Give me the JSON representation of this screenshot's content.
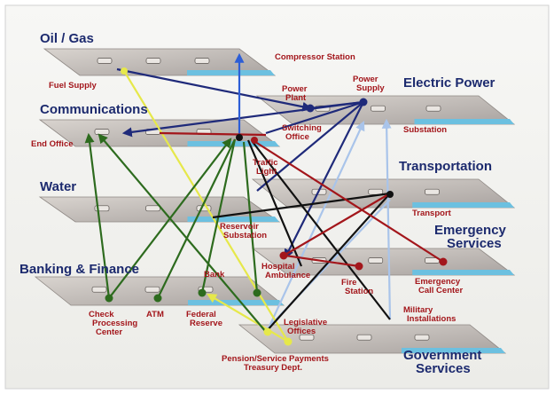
{
  "layers": [
    {
      "lines": [
        "Oil / Gas"
      ]
    },
    {
      "lines": [
        "Communications"
      ]
    },
    {
      "lines": [
        "Water"
      ]
    },
    {
      "lines": [
        "Banking & Finance"
      ]
    },
    {
      "lines": [
        "Electric Power"
      ]
    },
    {
      "lines": [
        "Transportation"
      ]
    },
    {
      "lines": [
        "Emergency",
        "Services"
      ]
    },
    {
      "lines": [
        "Government",
        "Services"
      ]
    }
  ],
  "nodes": [
    {
      "lines": [
        "Compressor Station"
      ]
    },
    {
      "lines": [
        "Fuel Supply"
      ]
    },
    {
      "lines": [
        "Power",
        "Plant"
      ]
    },
    {
      "lines": [
        "Power",
        "Supply"
      ]
    },
    {
      "lines": [
        "Switching",
        "Office"
      ]
    },
    {
      "lines": [
        "End Office"
      ]
    },
    {
      "lines": [
        "Substation"
      ]
    },
    {
      "lines": [
        "Traffic",
        "Light"
      ]
    },
    {
      "lines": [
        "Transport"
      ]
    },
    {
      "lines": [
        "Reservoir",
        "Substation"
      ]
    },
    {
      "lines": [
        "Hospital",
        "Ambulance"
      ]
    },
    {
      "lines": [
        "Fire",
        "Station"
      ]
    },
    {
      "lines": [
        "Emergency",
        "Call Center"
      ]
    },
    {
      "lines": [
        "Bank"
      ]
    },
    {
      "lines": [
        "Check",
        "Processing",
        "Center"
      ]
    },
    {
      "lines": [
        "ATM"
      ]
    },
    {
      "lines": [
        "Federal",
        "Reserve"
      ]
    },
    {
      "lines": [
        "Legislative",
        "Offices"
      ]
    },
    {
      "lines": [
        "Military",
        "Installations"
      ]
    },
    {
      "lines": [
        "Pension/Service Payments",
        "Treasury Dept."
      ]
    }
  ]
}
